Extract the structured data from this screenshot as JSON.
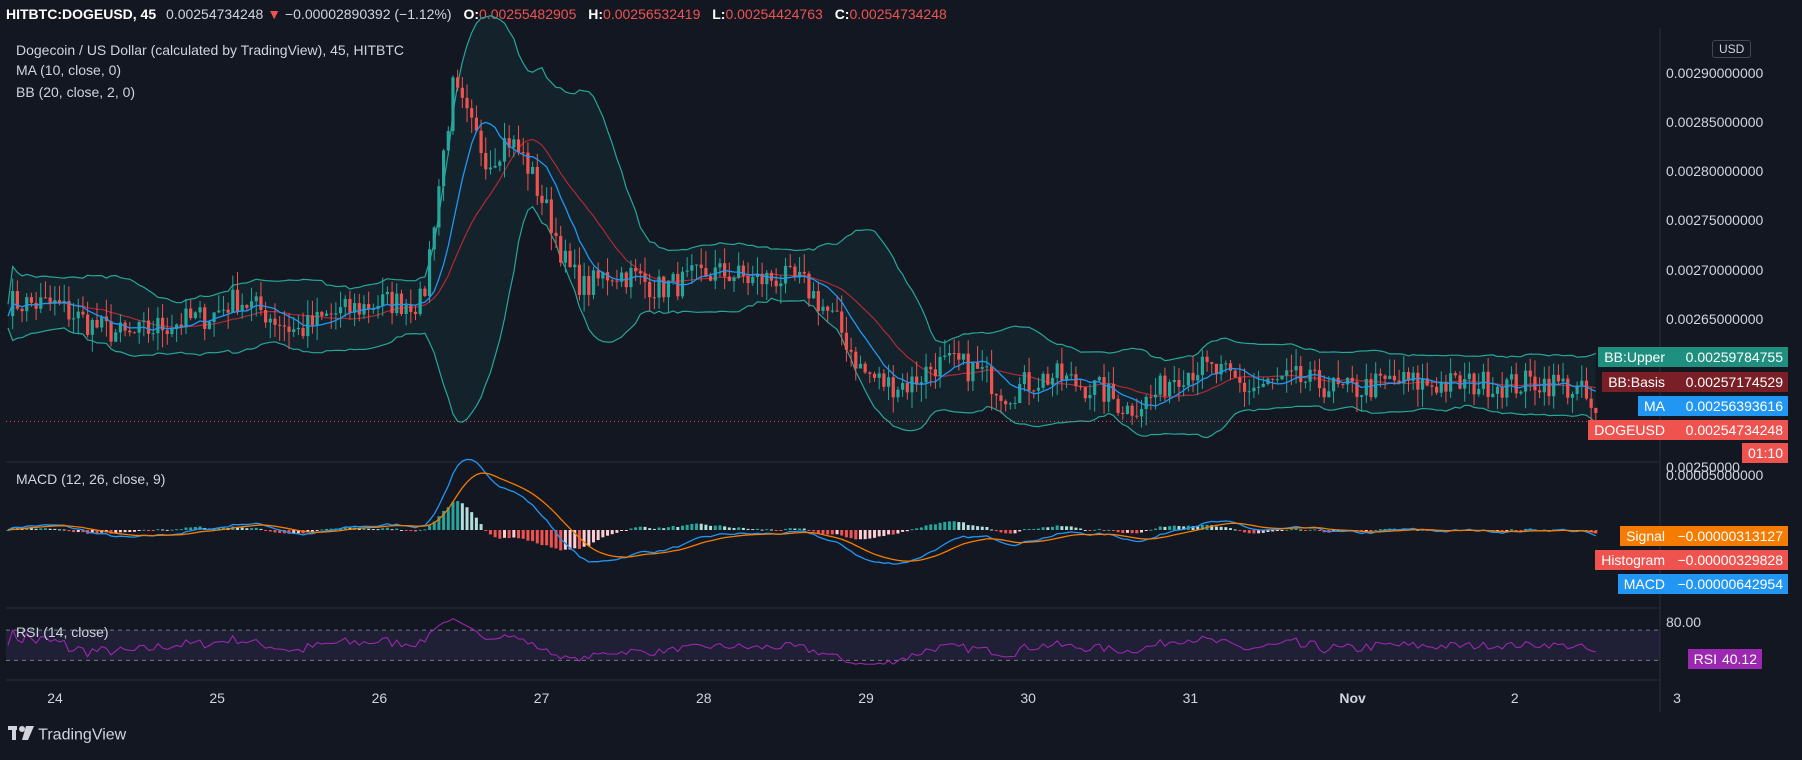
{
  "header": {
    "symbol": "HITBTC:DOGEUSD, 45",
    "last": "0.00254734248",
    "change_arrow": "▼",
    "change": "−0.00002890392 (−1.12%)",
    "o_label": "O:",
    "o": "0.00255482905",
    "h_label": "H:",
    "h": "0.00256532419",
    "l_label": "L:",
    "l": "0.00254424763",
    "c_label": "C:",
    "c": "0.00254734248"
  },
  "legend": {
    "title": "Dogecoin / US Dollar (calculated by TradingView), 45, HITBTC",
    "ma": "MA (10, close, 0)",
    "bb": "BB (20, close, 2, 0)",
    "macd": "MACD (12, 26, close, 9)",
    "rsi": "RSI (14, close)"
  },
  "currency_button": "USD",
  "price_axis": {
    "ticks": [
      "0.00290000000",
      "0.00285000000",
      "0.00280000000",
      "0.00275000000",
      "0.00270000000",
      "0.00265000000",
      "0.00250000"
    ],
    "tick_values": [
      0.0029,
      0.00285,
      0.0028,
      0.00275,
      0.0027,
      0.00265,
      0.0025
    ],
    "macd_tick": "0.00005000000",
    "rsi_tick": "80.00"
  },
  "price_tags": [
    {
      "label": "BB:Upper",
      "value": "0.00259784755",
      "color": "#1f8f80",
      "value_color": "#1f8f80",
      "level": 0.00259784755
    },
    {
      "label": "BB:Basis",
      "value": "0.00257174529",
      "color": "#7a1f25",
      "value_color": "#7a1f25",
      "level": 0.00257174529
    },
    {
      "label": "MA",
      "value": "0.00256393616",
      "color": "#2196f3",
      "value_color": "#2196f3",
      "level": 0.00256393616
    },
    {
      "label": "DOGEUSD",
      "value": "0.00254734248",
      "color": "#ef5350",
      "value_color": "#ef5350",
      "level": 0.00254734248
    }
  ],
  "countdown": "01:10",
  "macd_tags": [
    {
      "label": "Signal",
      "value": "−0.00000313127",
      "color": "#f57c00"
    },
    {
      "label": "Histogram",
      "value": "−0.00000329828",
      "color": "#ef5350"
    },
    {
      "label": "MACD",
      "value": "−0.00000642954",
      "color": "#2196f3"
    }
  ],
  "rsi_tag": {
    "label": "RSI",
    "value": "40.12",
    "color": "#9c27b0"
  },
  "time_axis": [
    "24",
    "25",
    "26",
    "27",
    "28",
    "29",
    "30",
    "31",
    "Nov",
    "2",
    "3"
  ],
  "footer": {
    "brand": "TradingView"
  },
  "colors": {
    "up": "#26a69a",
    "down": "#ef5350",
    "ma": "#2196f3",
    "bb_band": "#26a69a",
    "bb_basis": "#b22833",
    "rsi": "#9c27b0",
    "grid": "#1e222d",
    "bg": "#131722"
  },
  "chart_data": {
    "type": "candlestick",
    "title": "Dogecoin / US Dollar (calculated by TradingView), 45, HITBTC",
    "x_ticks": [
      "24",
      "25",
      "26",
      "27",
      "28",
      "29",
      "30",
      "31",
      "Nov",
      "2",
      "3"
    ],
    "y_range": [
      0.0025,
      0.00293
    ],
    "close_path": [
      [
        0,
        0.002668
      ],
      [
        0.04,
        0.002665
      ],
      [
        0.07,
        0.002645
      ],
      [
        0.1,
        0.002633
      ],
      [
        0.13,
        0.002645
      ],
      [
        0.17,
        0.002655
      ],
      [
        0.19,
        0.002672
      ],
      [
        0.21,
        0.00266
      ],
      [
        0.24,
        0.002638
      ],
      [
        0.27,
        0.002656
      ],
      [
        0.31,
        0.002668
      ],
      [
        0.345,
        0.002668
      ],
      [
        0.355,
        0.00276
      ],
      [
        0.37,
        0.002885
      ],
      [
        0.385,
        0.002845
      ],
      [
        0.4,
        0.00281
      ],
      [
        0.415,
        0.002835
      ],
      [
        0.43,
        0.002812
      ],
      [
        0.45,
        0.002755
      ],
      [
        0.465,
        0.002703
      ],
      [
        0.48,
        0.002682
      ],
      [
        0.5,
        0.002698
      ],
      [
        0.52,
        0.002695
      ],
      [
        0.54,
        0.002682
      ],
      [
        0.56,
        0.002688
      ],
      [
        0.58,
        0.002697
      ],
      [
        0.6,
        0.002697
      ],
      [
        0.62,
        0.00269
      ],
      [
        0.64,
        0.002693
      ],
      [
        0.66,
        0.002688
      ],
      [
        0.67,
        0.002675
      ],
      [
        0.69,
        0.002645
      ],
      [
        0.71,
        0.002598
      ],
      [
        0.73,
        0.002585
      ],
      [
        0.75,
        0.002585
      ],
      [
        0.77,
        0.002605
      ],
      [
        0.79,
        0.002605
      ],
      [
        0.81,
        0.002596
      ],
      [
        0.83,
        0.002575
      ],
      [
        0.85,
        0.002588
      ],
      [
        0.87,
        0.002593
      ],
      [
        0.89,
        0.002585
      ],
      [
        0.91,
        0.002578
      ],
      [
        0.93,
        0.00256
      ],
      [
        0.95,
        0.00257
      ],
      [
        0.97,
        0.002595
      ],
      [
        0.99,
        0.002602
      ],
      [
        1.01,
        0.002595
      ],
      [
        1.03,
        0.00258
      ],
      [
        1.05,
        0.002585
      ],
      [
        1.07,
        0.00259
      ],
      [
        1.09,
        0.002585
      ],
      [
        1.11,
        0.002578
      ],
      [
        1.13,
        0.002582
      ],
      [
        1.15,
        0.002588
      ],
      [
        1.17,
        0.002586
      ],
      [
        1.19,
        0.002585
      ],
      [
        1.21,
        0.002585
      ],
      [
        1.23,
        0.002586
      ],
      [
        1.25,
        0.002584
      ],
      [
        1.27,
        0.002588
      ],
      [
        1.29,
        0.002585
      ],
      [
        1.31,
        0.002575
      ],
      [
        1.32,
        0.002548
      ]
    ],
    "rsi_levels": [
      30,
      70
    ],
    "macd_peak": 5e-05
  }
}
